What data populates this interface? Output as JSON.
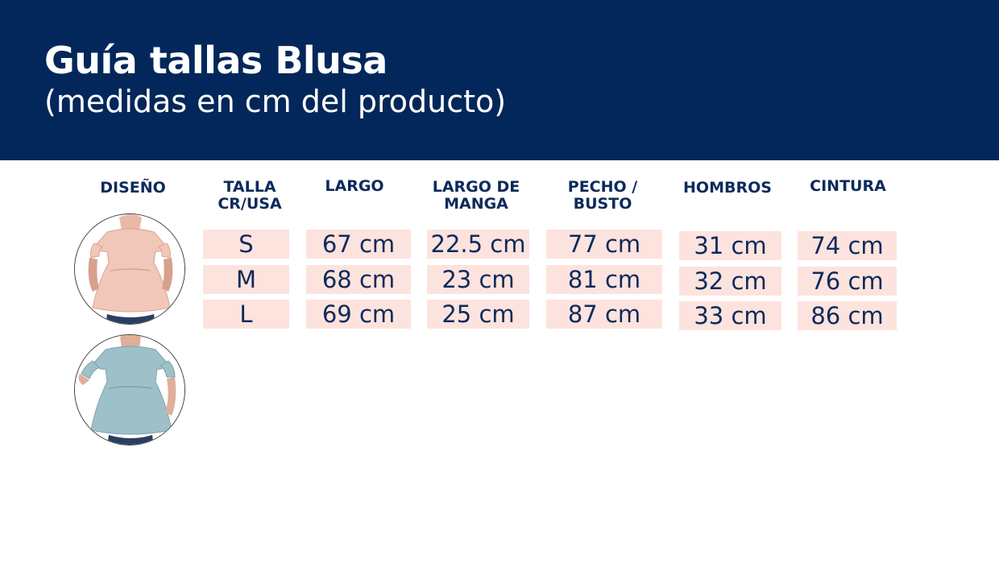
{
  "header": {
    "title": "Guía tallas Blusa",
    "subtitle": "(medidas en cm del producto)"
  },
  "columns": {
    "design": "DISEÑO",
    "size": [
      "TALLA",
      "CR/USA"
    ],
    "length": "LARGO",
    "sleeve": [
      "LARGO DE",
      "MANGA"
    ],
    "chest": [
      "PECHO /",
      "BUSTO"
    ],
    "shoulders": "HOMBROS",
    "waist": "CINTURA"
  },
  "rows": [
    {
      "size": "S",
      "length": "67 cm",
      "sleeve": "22.5 cm",
      "chest": "77 cm",
      "shoulders": "31 cm",
      "waist": "74 cm"
    },
    {
      "size": "M",
      "length": "68 cm",
      "sleeve": "23 cm",
      "chest": "81 cm",
      "shoulders": "32 cm",
      "waist": "76 cm"
    },
    {
      "size": "L",
      "length": "69 cm",
      "sleeve": "25 cm",
      "chest": "87 cm",
      "shoulders": "33 cm",
      "waist": "86 cm"
    }
  ],
  "designs": [
    {
      "name": "pink-blouse",
      "color": "#f0c7b8"
    },
    {
      "name": "blue-blouse",
      "color": "#9ec0c9"
    }
  ],
  "colors": {
    "banner": "#03275a",
    "text": "#0d2a5c",
    "cell": "#fde3dd"
  }
}
